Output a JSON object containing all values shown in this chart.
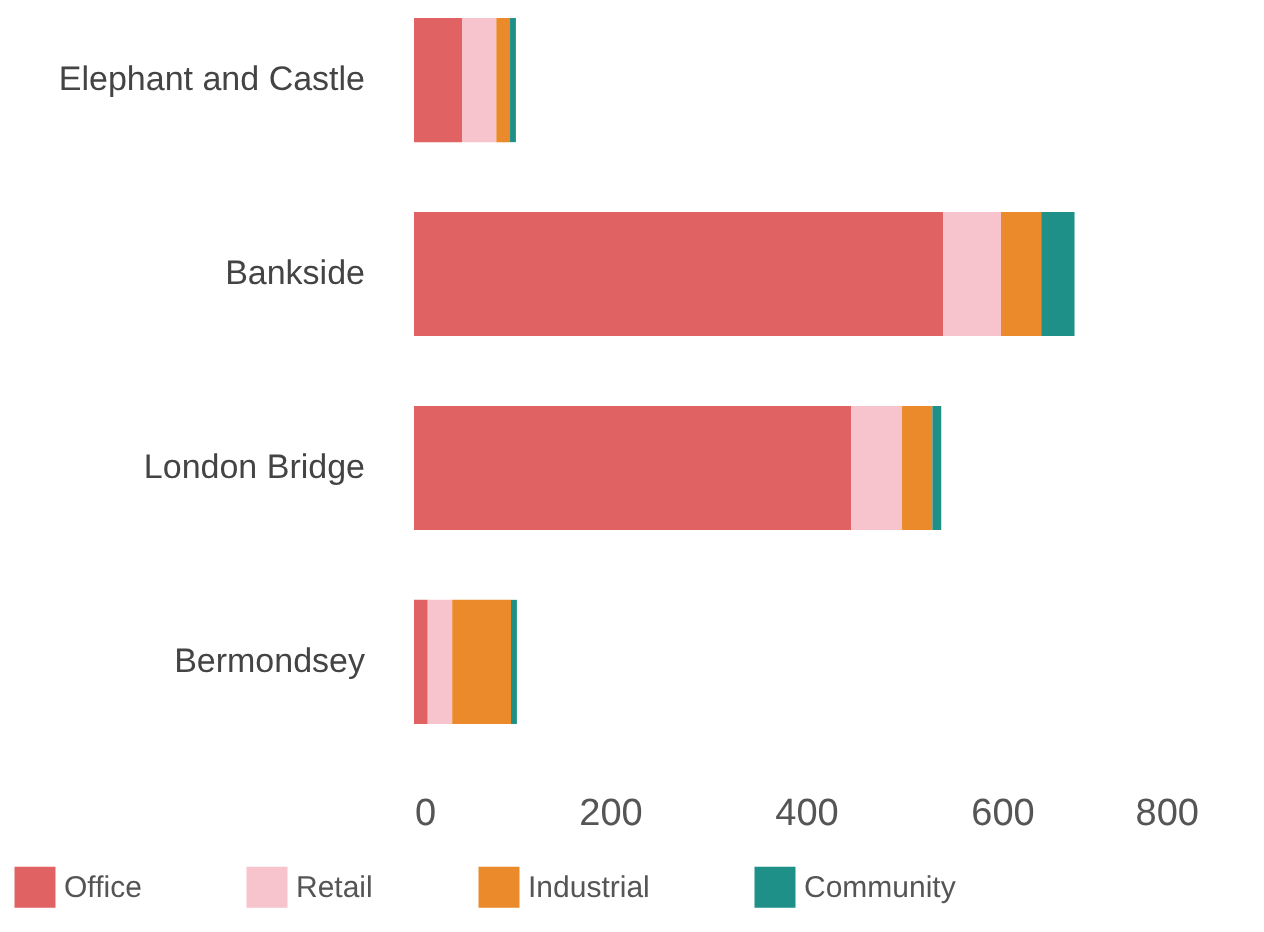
{
  "chart_data": {
    "type": "bar",
    "orientation": "horizontal",
    "stacked": true,
    "categories": [
      "Elephant and Castle",
      "Bankside",
      "London Bridge",
      "Bermondsey"
    ],
    "series": [
      {
        "name": "Office",
        "color": "#e06262",
        "values": [
          49,
          540,
          446,
          14
        ]
      },
      {
        "name": "Retail",
        "color": "#f7c3cc",
        "values": [
          35,
          59,
          52,
          25
        ]
      },
      {
        "name": "Industrial",
        "color": "#ea8a2a",
        "values": [
          14,
          41,
          31,
          60
        ]
      },
      {
        "name": "Community",
        "color": "#1e9088",
        "values": [
          6,
          34,
          9,
          6
        ]
      }
    ],
    "xlim": [
      0,
      800
    ],
    "xticks": [
      0,
      200,
      400,
      600,
      800
    ],
    "grid": false,
    "legend": "bottom"
  }
}
